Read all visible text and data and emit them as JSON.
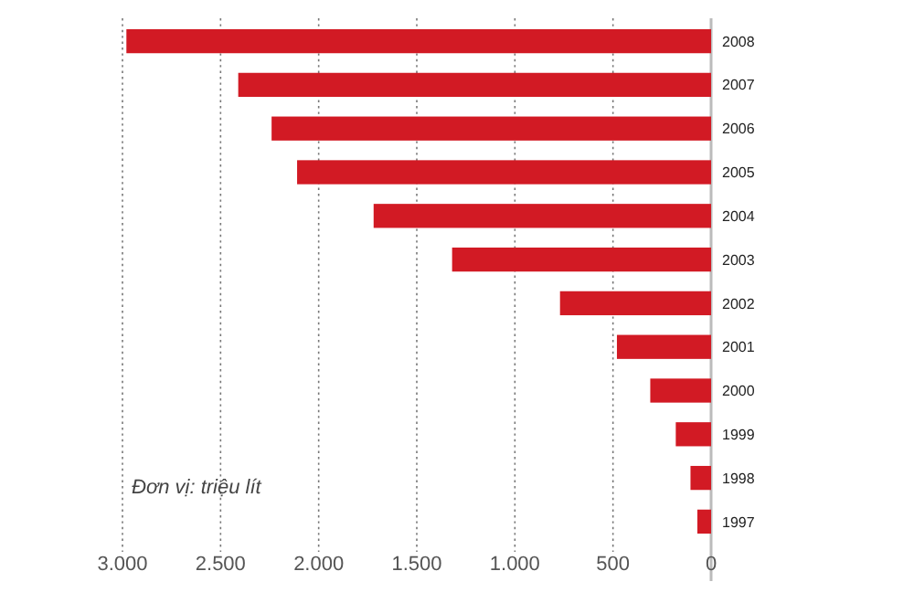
{
  "chart_data": {
    "type": "bar",
    "orientation": "horizontal",
    "categories": [
      "2008",
      "2007",
      "2006",
      "2005",
      "2004",
      "2003",
      "2002",
      "2001",
      "2000",
      "1999",
      "1998",
      "1997"
    ],
    "values": [
      2980,
      2410,
      2240,
      2110,
      1720,
      1320,
      770,
      480,
      310,
      180,
      105,
      70
    ],
    "color": "#d21a24",
    "xlim": [
      3000,
      0
    ],
    "xticks": [
      {
        "value": 3000,
        "label": "3.000"
      },
      {
        "value": 2500,
        "label": "2.500"
      },
      {
        "value": 2000,
        "label": "2.000"
      },
      {
        "value": 1500,
        "label": "1.500"
      },
      {
        "value": 1000,
        "label": "1.000"
      },
      {
        "value": 500,
        "label": "500"
      },
      0
    ],
    "grid": "x",
    "annotations": [
      "Đơn vị: triệu lít"
    ]
  }
}
